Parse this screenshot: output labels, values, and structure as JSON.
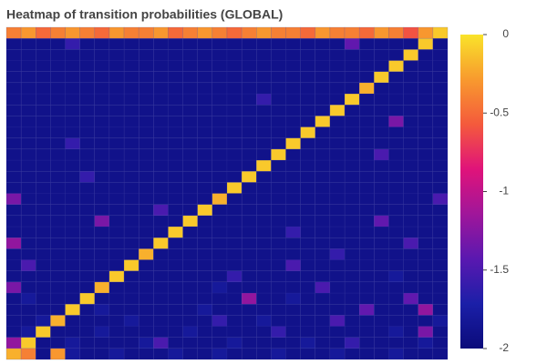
{
  "chart_data": {
    "type": "heatmap",
    "title": "Heatmap of transition probabilities (GLOBAL)",
    "zlim": [
      -2,
      0
    ],
    "colorbar_ticks": [
      0,
      -0.5,
      -1,
      -1.5,
      -2
    ],
    "colorscale": [
      "#0b0b7a",
      "#1b1fa8",
      "#5a18b0",
      "#a0169a",
      "#e0137a",
      "#f45a3c",
      "#f89a2e",
      "#f9e32a"
    ],
    "z": [
      [
        -0.2,
        -0.4,
        -1.9,
        -0.3,
        -1.8,
        -1.9,
        -1.9,
        -1.8,
        -1.9,
        -1.9,
        -1.9,
        -1.8,
        -1.9,
        -1.9,
        -1.8,
        -1.9,
        -1.9,
        -1.9,
        -1.8,
        -1.9,
        -1.9,
        -1.9,
        -1.8,
        -1.9,
        -1.9,
        -1.9,
        -1.8,
        -1.9,
        -1.9,
        -1.9
      ],
      [
        -1.2,
        -0.1,
        -1.9,
        -1.9,
        -1.8,
        -1.9,
        -1.9,
        -1.9,
        -1.9,
        -1.8,
        -1.5,
        -1.9,
        -1.9,
        -1.9,
        -1.9,
        -1.8,
        -1.9,
        -1.9,
        -1.9,
        -1.9,
        -1.8,
        -1.9,
        -1.9,
        -1.6,
        -1.9,
        -1.9,
        -1.9,
        -1.9,
        -1.8,
        -1.9
      ],
      [
        -1.9,
        -1.8,
        -0.1,
        -1.9,
        -1.9,
        -1.9,
        -1.8,
        -1.9,
        -1.9,
        -1.9,
        -1.9,
        -1.9,
        -1.8,
        -1.9,
        -1.9,
        -1.9,
        -1.9,
        -1.9,
        -1.6,
        -1.9,
        -1.9,
        -1.9,
        -1.9,
        -1.9,
        -1.9,
        -1.9,
        -1.8,
        -1.9,
        -1.3,
        -1.9
      ],
      [
        -1.9,
        -1.9,
        -1.8,
        -0.2,
        -1.9,
        -1.9,
        -1.9,
        -1.9,
        -1.8,
        -1.9,
        -1.9,
        -1.9,
        -1.9,
        -1.9,
        -1.6,
        -1.9,
        -1.9,
        -1.8,
        -1.9,
        -1.9,
        -1.9,
        -1.9,
        -1.5,
        -1.9,
        -1.9,
        -1.9,
        -1.9,
        -1.9,
        -1.9,
        -1.8
      ],
      [
        -1.9,
        -1.9,
        -1.9,
        -1.9,
        -0.1,
        -1.9,
        -1.8,
        -1.9,
        -1.9,
        -1.9,
        -1.9,
        -1.9,
        -1.9,
        -1.8,
        -1.9,
        -1.9,
        -1.9,
        -1.9,
        -1.9,
        -1.9,
        -1.9,
        -1.9,
        -1.9,
        -1.9,
        -1.4,
        -1.9,
        -1.9,
        -1.9,
        -1.2,
        -1.9
      ],
      [
        -1.9,
        -1.8,
        -1.9,
        -1.9,
        -1.9,
        -0.1,
        -1.9,
        -1.9,
        -1.9,
        -1.9,
        -1.9,
        -1.9,
        -1.9,
        -1.9,
        -1.9,
        -1.9,
        -1.2,
        -1.9,
        -1.9,
        -1.8,
        -1.9,
        -1.9,
        -1.9,
        -1.9,
        -1.9,
        -1.9,
        -1.9,
        -1.4,
        -1.9,
        -1.9
      ],
      [
        -1.3,
        -1.9,
        -1.9,
        -1.9,
        -1.9,
        -1.9,
        -0.2,
        -1.9,
        -1.9,
        -1.9,
        -1.9,
        -1.9,
        -1.9,
        -1.9,
        -1.8,
        -1.9,
        -1.9,
        -1.9,
        -1.9,
        -1.9,
        -1.9,
        -1.5,
        -1.9,
        -1.9,
        -1.9,
        -1.9,
        -1.9,
        -1.9,
        -1.9,
        -1.9
      ],
      [
        -1.9,
        -1.9,
        -1.9,
        -1.9,
        -1.9,
        -1.9,
        -1.9,
        -0.1,
        -1.9,
        -1.9,
        -1.9,
        -1.9,
        -1.9,
        -1.9,
        -1.9,
        -1.6,
        -1.9,
        -1.9,
        -1.9,
        -1.9,
        -1.9,
        -1.9,
        -1.9,
        -1.9,
        -1.9,
        -1.9,
        -1.8,
        -1.9,
        -1.9,
        -1.9
      ],
      [
        -1.9,
        -1.5,
        -1.9,
        -1.9,
        -1.9,
        -1.9,
        -1.9,
        -1.9,
        -0.1,
        -1.9,
        -1.9,
        -1.9,
        -1.9,
        -1.9,
        -1.9,
        -1.9,
        -1.9,
        -1.9,
        -1.9,
        -1.5,
        -1.9,
        -1.9,
        -1.9,
        -1.9,
        -1.9,
        -1.9,
        -1.9,
        -1.9,
        -1.9,
        -1.9
      ],
      [
        -1.9,
        -1.9,
        -1.9,
        -1.9,
        -1.9,
        -1.9,
        -1.9,
        -1.9,
        -1.9,
        -0.2,
        -1.9,
        -1.9,
        -1.9,
        -1.9,
        -1.9,
        -1.9,
        -1.9,
        -1.9,
        -1.9,
        -1.9,
        -1.9,
        -1.9,
        -1.6,
        -1.9,
        -1.9,
        -1.9,
        -1.9,
        -1.9,
        -1.9,
        -1.9
      ],
      [
        -1.2,
        -1.9,
        -1.9,
        -1.9,
        -1.9,
        -1.9,
        -1.9,
        -1.9,
        -1.9,
        -1.9,
        -0.1,
        -1.9,
        -1.9,
        -1.9,
        -1.9,
        -1.9,
        -1.9,
        -1.9,
        -1.9,
        -1.9,
        -1.9,
        -1.9,
        -1.9,
        -1.9,
        -1.9,
        -1.9,
        -1.9,
        -1.5,
        -1.9,
        -1.9
      ],
      [
        -1.9,
        -1.9,
        -1.9,
        -1.9,
        -1.9,
        -1.9,
        -1.9,
        -1.9,
        -1.9,
        -1.9,
        -1.9,
        -0.1,
        -1.9,
        -1.9,
        -1.9,
        -1.9,
        -1.9,
        -1.9,
        -1.9,
        -1.6,
        -1.9,
        -1.9,
        -1.9,
        -1.9,
        -1.9,
        -1.9,
        -1.9,
        -1.9,
        -1.9,
        -1.9
      ],
      [
        -1.9,
        -1.9,
        -1.9,
        -1.9,
        -1.9,
        -1.9,
        -1.3,
        -1.9,
        -1.9,
        -1.9,
        -1.9,
        -1.9,
        -0.1,
        -1.9,
        -1.9,
        -1.9,
        -1.9,
        -1.9,
        -1.9,
        -1.9,
        -1.9,
        -1.9,
        -1.9,
        -1.9,
        -1.9,
        -1.4,
        -1.9,
        -1.9,
        -1.9,
        -1.9
      ],
      [
        -1.9,
        -1.9,
        -1.9,
        -1.9,
        -1.9,
        -1.9,
        -1.9,
        -1.9,
        -1.9,
        -1.9,
        -1.5,
        -1.9,
        -1.9,
        -0.1,
        -1.9,
        -1.9,
        -1.9,
        -1.9,
        -1.9,
        -1.9,
        -1.9,
        -1.9,
        -1.9,
        -1.9,
        -1.9,
        -1.9,
        -1.9,
        -1.9,
        -1.9,
        -1.9
      ],
      [
        -1.3,
        -1.9,
        -1.9,
        -1.9,
        -1.9,
        -1.9,
        -1.9,
        -1.9,
        -1.9,
        -1.9,
        -1.9,
        -1.9,
        -1.9,
        -1.9,
        -0.2,
        -1.9,
        -1.9,
        -1.9,
        -1.9,
        -1.9,
        -1.9,
        -1.9,
        -1.9,
        -1.9,
        -1.9,
        -1.9,
        -1.9,
        -1.9,
        -1.9,
        -1.5
      ],
      [
        -1.9,
        -1.9,
        -1.9,
        -1.9,
        -1.9,
        -1.9,
        -1.9,
        -1.9,
        -1.9,
        -1.9,
        -1.9,
        -1.9,
        -1.9,
        -1.9,
        -1.9,
        -0.1,
        -1.9,
        -1.9,
        -1.9,
        -1.9,
        -1.9,
        -1.9,
        -1.9,
        -1.9,
        -1.9,
        -1.9,
        -1.9,
        -1.9,
        -1.9,
        -1.9
      ],
      [
        -1.9,
        -1.9,
        -1.9,
        -1.9,
        -1.9,
        -1.6,
        -1.9,
        -1.9,
        -1.9,
        -1.9,
        -1.9,
        -1.9,
        -1.9,
        -1.9,
        -1.9,
        -1.9,
        -0.1,
        -1.9,
        -1.9,
        -1.9,
        -1.9,
        -1.9,
        -1.9,
        -1.9,
        -1.9,
        -1.9,
        -1.9,
        -1.9,
        -1.9,
        -1.9
      ],
      [
        -1.9,
        -1.9,
        -1.9,
        -1.9,
        -1.9,
        -1.9,
        -1.9,
        -1.9,
        -1.9,
        -1.9,
        -1.9,
        -1.9,
        -1.9,
        -1.9,
        -1.9,
        -1.9,
        -1.9,
        -0.1,
        -1.9,
        -1.9,
        -1.9,
        -1.9,
        -1.9,
        -1.9,
        -1.9,
        -1.9,
        -1.9,
        -1.9,
        -1.9,
        -1.9
      ],
      [
        -1.9,
        -1.9,
        -1.9,
        -1.9,
        -1.9,
        -1.9,
        -1.9,
        -1.9,
        -1.9,
        -1.9,
        -1.9,
        -1.9,
        -1.9,
        -1.9,
        -1.9,
        -1.9,
        -1.9,
        -1.9,
        -0.1,
        -1.9,
        -1.9,
        -1.9,
        -1.9,
        -1.9,
        -1.9,
        -1.5,
        -1.9,
        -1.9,
        -1.9,
        -1.9
      ],
      [
        -1.9,
        -1.9,
        -1.9,
        -1.9,
        -1.6,
        -1.9,
        -1.9,
        -1.9,
        -1.9,
        -1.9,
        -1.9,
        -1.9,
        -1.9,
        -1.9,
        -1.9,
        -1.9,
        -1.9,
        -1.9,
        -1.9,
        -0.1,
        -1.9,
        -1.9,
        -1.9,
        -1.9,
        -1.9,
        -1.9,
        -1.9,
        -1.9,
        -1.9,
        -1.9
      ],
      [
        -1.9,
        -1.9,
        -1.9,
        -1.9,
        -1.9,
        -1.9,
        -1.9,
        -1.9,
        -1.9,
        -1.9,
        -1.9,
        -1.9,
        -1.9,
        -1.9,
        -1.9,
        -1.9,
        -1.9,
        -1.9,
        -1.9,
        -1.9,
        -0.1,
        -1.9,
        -1.9,
        -1.9,
        -1.9,
        -1.9,
        -1.9,
        -1.9,
        -1.9,
        -1.9
      ],
      [
        -1.9,
        -1.9,
        -1.9,
        -1.9,
        -1.9,
        -1.9,
        -1.9,
        -1.9,
        -1.9,
        -1.9,
        -1.9,
        -1.9,
        -1.9,
        -1.9,
        -1.9,
        -1.9,
        -1.9,
        -1.9,
        -1.9,
        -1.9,
        -1.9,
        -0.1,
        -1.9,
        -1.9,
        -1.9,
        -1.9,
        -1.3,
        -1.9,
        -1.9,
        -1.9
      ],
      [
        -1.9,
        -1.9,
        -1.9,
        -1.9,
        -1.9,
        -1.9,
        -1.9,
        -1.9,
        -1.9,
        -1.9,
        -1.9,
        -1.9,
        -1.9,
        -1.9,
        -1.9,
        -1.9,
        -1.9,
        -1.9,
        -1.9,
        -1.9,
        -1.9,
        -1.9,
        -0.1,
        -1.9,
        -1.9,
        -1.9,
        -1.9,
        -1.9,
        -1.9,
        -1.9
      ],
      [
        -1.9,
        -1.9,
        -1.9,
        -1.9,
        -1.9,
        -1.9,
        -1.9,
        -1.9,
        -1.9,
        -1.9,
        -1.9,
        -1.9,
        -1.9,
        -1.9,
        -1.9,
        -1.9,
        -1.9,
        -1.6,
        -1.9,
        -1.9,
        -1.9,
        -1.9,
        -1.9,
        -0.1,
        -1.9,
        -1.9,
        -1.9,
        -1.9,
        -1.9,
        -1.9
      ],
      [
        -1.9,
        -1.9,
        -1.9,
        -1.9,
        -1.9,
        -1.9,
        -1.9,
        -1.9,
        -1.9,
        -1.9,
        -1.9,
        -1.9,
        -1.9,
        -1.9,
        -1.9,
        -1.9,
        -1.9,
        -1.9,
        -1.9,
        -1.9,
        -1.9,
        -1.9,
        -1.9,
        -1.9,
        -0.2,
        -1.9,
        -1.9,
        -1.9,
        -1.9,
        -1.9
      ],
      [
        -1.9,
        -1.9,
        -1.9,
        -1.9,
        -1.9,
        -1.9,
        -1.9,
        -1.9,
        -1.9,
        -1.9,
        -1.9,
        -1.9,
        -1.9,
        -1.9,
        -1.9,
        -1.9,
        -1.9,
        -1.9,
        -1.9,
        -1.9,
        -1.9,
        -1.9,
        -1.9,
        -1.9,
        -1.9,
        -0.1,
        -1.9,
        -1.9,
        -1.9,
        -1.9
      ],
      [
        -1.9,
        -1.9,
        -1.9,
        -1.9,
        -1.9,
        -1.9,
        -1.9,
        -1.9,
        -1.9,
        -1.9,
        -1.9,
        -1.9,
        -1.9,
        -1.9,
        -1.9,
        -1.9,
        -1.9,
        -1.9,
        -1.9,
        -1.9,
        -1.9,
        -1.9,
        -1.9,
        -1.9,
        -1.9,
        -1.9,
        -0.1,
        -1.9,
        -1.9,
        -1.9
      ],
      [
        -1.9,
        -1.9,
        -1.9,
        -1.9,
        -1.9,
        -1.9,
        -1.9,
        -1.9,
        -1.9,
        -1.9,
        -1.9,
        -1.9,
        -1.9,
        -1.9,
        -1.9,
        -1.9,
        -1.9,
        -1.9,
        -1.9,
        -1.9,
        -1.9,
        -1.9,
        -1.9,
        -1.9,
        -1.9,
        -1.9,
        -1.9,
        -0.1,
        -1.9,
        -1.9
      ],
      [
        -1.9,
        -1.9,
        -1.9,
        -1.9,
        -1.6,
        -1.9,
        -1.9,
        -1.9,
        -1.9,
        -1.9,
        -1.9,
        -1.9,
        -1.9,
        -1.9,
        -1.9,
        -1.9,
        -1.9,
        -1.9,
        -1.9,
        -1.9,
        -1.9,
        -1.9,
        -1.9,
        -1.4,
        -1.9,
        -1.9,
        -1.9,
        -1.9,
        -0.1,
        -1.9
      ],
      [
        -0.4,
        -0.3,
        -0.5,
        -0.4,
        -0.3,
        -0.4,
        -0.5,
        -0.3,
        -0.4,
        -0.4,
        -0.3,
        -0.5,
        -0.4,
        -0.3,
        -0.4,
        -0.5,
        -0.4,
        -0.3,
        -0.4,
        -0.4,
        -0.5,
        -0.3,
        -0.4,
        -0.4,
        -0.5,
        -0.3,
        -0.4,
        -0.6,
        -0.3,
        -0.1
      ]
    ]
  }
}
